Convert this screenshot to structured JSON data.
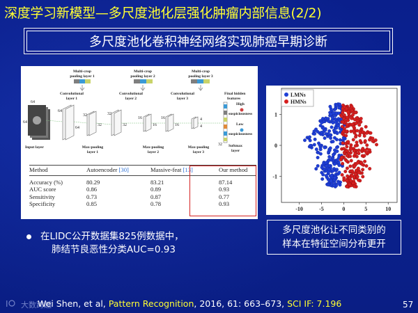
{
  "title": "深度学习新模型—多尺度池化层强化肿瘤内部信息(2/2)",
  "subtitle": "多尺度池化卷积神经网络实现肺癌早期诊断",
  "cnn_diagram": {
    "pooling_labels": [
      "Multi-crop pooling layer 1",
      "Multi-crop pooling layer 2",
      "Multi-crop pooling layer 3"
    ],
    "conv_labels": [
      "Convolutional layer 1",
      "Convolutional layer 2",
      "Convolutional layer 3"
    ],
    "maxpool_labels": [
      "Max-pooling layer 1",
      "Max-pooling layer 2",
      "Max-pooling layer 3"
    ],
    "input_label": "Input layer",
    "final_label": "Final hidden features",
    "softmax_label": "Softmax layer",
    "high_label": "High suspiciousness",
    "low_label": "Low suspiciousness",
    "dims": {
      "d64": "64",
      "d32": "32",
      "d16": "16",
      "d4": "4"
    }
  },
  "results_table": {
    "headers": [
      "Method",
      "Autoencoder",
      "Massive-feat",
      "Our method"
    ],
    "header_refs": [
      "",
      "[30]",
      "[13]",
      ""
    ],
    "rows": [
      [
        "Accuracy (%)",
        "80.29",
        "83.21",
        "87.14"
      ],
      [
        "AUC score",
        "0.86",
        "0.89",
        "0.93"
      ],
      [
        "Sensitivity",
        "0.73",
        "0.87",
        "0.77"
      ],
      [
        "Specificity",
        "0.85",
        "0.78",
        "0.93"
      ]
    ]
  },
  "chart_data": {
    "type": "scatter",
    "title": "",
    "xlabel": "",
    "ylabel": "",
    "xlim": [
      -14,
      12
    ],
    "ylim": [
      -1.85,
      1.85
    ],
    "xticks": [
      -10,
      -5,
      0,
      5,
      10
    ],
    "yticks": [
      1,
      0,
      -1
    ],
    "legend_position": "top-left",
    "series": [
      {
        "name": "LMNs",
        "color": "#1f3fd6",
        "cluster": {
          "x_range": [
            -12,
            2
          ],
          "y_range": [
            -1.4,
            1.4
          ],
          "count": 260,
          "shape": "triangle-left"
        }
      },
      {
        "name": "HMNs",
        "color": "#d61f1f",
        "cluster": {
          "x_range": [
            -1,
            10
          ],
          "y_range": [
            -1.4,
            1.4
          ],
          "count": 260,
          "shape": "triangle-right"
        }
      }
    ]
  },
  "bullet": {
    "line1": "在LIDC公开数据集825例数据中，",
    "line2": "肺结节良恶性分类AUC=0.93"
  },
  "note": {
    "line1": "多尺度池化让不同类别的",
    "line2": "样本在特征空间分布更开"
  },
  "citation": {
    "prefix": "Wei Shen, et al, ",
    "journal": "Pattern Recognition",
    "middle": ", 2016, 61: 663–673, ",
    "impact": "SCI IF: 7.196"
  },
  "page_number": "57",
  "logo_text": "大数跨越",
  "colors": {
    "title": "#ffff33",
    "background": "#0a1f8c",
    "highlight_box": "#d42020"
  }
}
